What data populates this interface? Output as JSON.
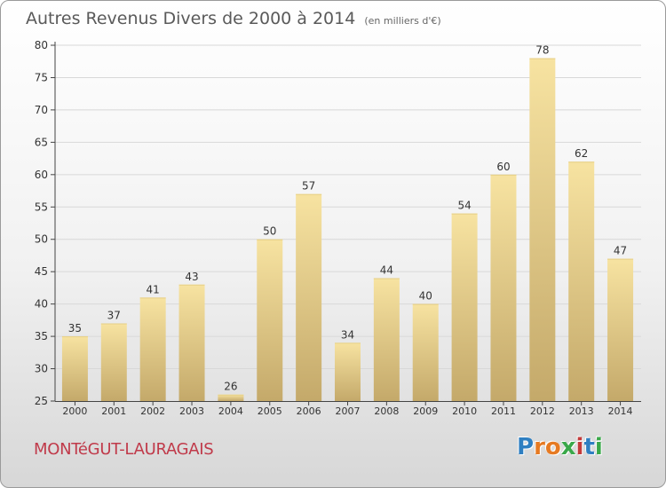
{
  "header": {
    "title": "Autres Revenus Divers de 2000 à 2014",
    "subtitle": "(en milliers d'€)"
  },
  "footer": {
    "town": "MONTéGUT-LAURAGAIS",
    "logo": {
      "letters": [
        "P",
        "r",
        "o",
        "x",
        "i",
        "t",
        "i"
      ],
      "colors": [
        "#2f7fc1",
        "#e67a22",
        "#e67a22",
        "#3aa84a",
        "#c33b3b",
        "#2f7fc1",
        "#3aa84a"
      ]
    }
  },
  "colors": {
    "bar_light": "#f7e3a1",
    "bar_dark": "#c4a96a",
    "axis": "#444444",
    "grid": "#d8d8d8",
    "town": "#c03a4a"
  },
  "chart_data": {
    "type": "bar",
    "title": "Autres Revenus Divers de 2000 à 2014",
    "subtitle": "(en milliers d'€)",
    "xlabel": "",
    "ylabel": "",
    "categories": [
      "2000",
      "2001",
      "2002",
      "2003",
      "2004",
      "2005",
      "2006",
      "2007",
      "2008",
      "2009",
      "2010",
      "2011",
      "2012",
      "2013",
      "2014"
    ],
    "values": [
      35,
      37,
      41,
      43,
      26,
      50,
      57,
      34,
      44,
      40,
      54,
      60,
      78,
      62,
      47
    ],
    "ylim": [
      25,
      80
    ],
    "yticks": [
      25,
      30,
      35,
      40,
      45,
      50,
      55,
      60,
      65,
      70,
      75,
      80
    ],
    "grid": true,
    "data_labels": true
  }
}
